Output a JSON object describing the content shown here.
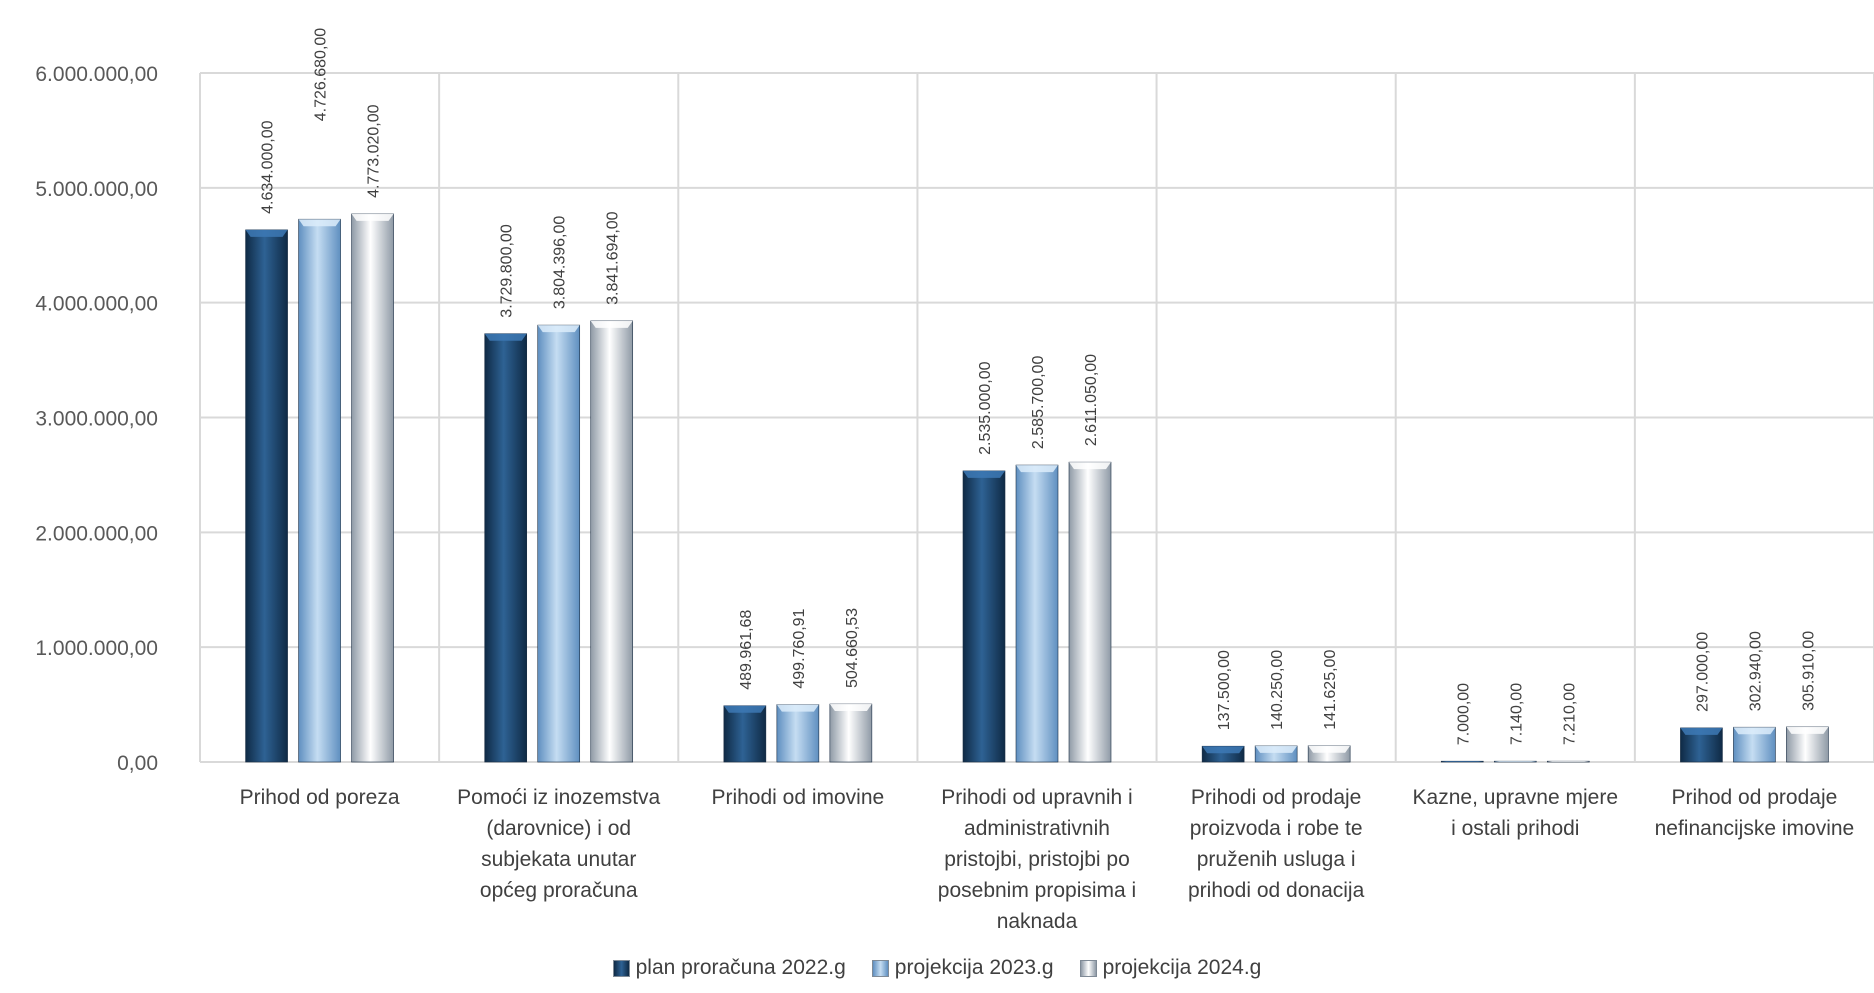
{
  "chart_data": {
    "type": "bar",
    "categories": [
      "Prihod od poreza",
      "Pomoći iz inozemstva (darovnice) i od subjekata unutar općeg proračuna",
      "Prihodi od imovine",
      "Prihodi od upravnih i administrativnih pristojbi, pristojbi po posebnim propisima i naknada",
      "Prihodi od prodaje proizvoda i robe te pruženih usluga i prihodi od donacija",
      "Kazne, upravne mjere i ostali prihodi",
      "Prihod od prodaje nefinancijske imovine"
    ],
    "category_lines": [
      [
        "Prihod od poreza"
      ],
      [
        "Pomoći iz inozemstva",
        "(darovnice) i od",
        "subjekata unutar",
        "općeg proračuna"
      ],
      [
        "Prihodi od imovine"
      ],
      [
        "Prihodi od upravnih i",
        "administrativnih",
        "pristojbi, pristojbi po",
        "posebnim propisima i",
        "naknada"
      ],
      [
        "Prihodi od prodaje",
        "proizvoda i robe te",
        "pruženih usluga i",
        "prihodi od donacija"
      ],
      [
        "Kazne, upravne mjere",
        "i ostali prihodi"
      ],
      [
        "Prihod od prodaje",
        "nefinancijske imovine"
      ]
    ],
    "series": [
      {
        "name": "plan proračuna 2022.g",
        "color": "#1f4e79",
        "values": [
          4634000.0,
          3729800.0,
          489961.68,
          2535000.0,
          137500.0,
          7000.0,
          297000.0
        ],
        "labels": [
          "4.634.000,00",
          "3.729.800,00",
          "489.961,68",
          "2.535.000,00",
          "137.500,00",
          "7.000,00",
          "297.000,00"
        ]
      },
      {
        "name": "projekcija 2023.g",
        "color": "#9dc3e6",
        "values": [
          4726680.0,
          3804396.0,
          499760.91,
          2585700.0,
          140250.0,
          7140.0,
          302940.0
        ],
        "labels": [
          "4.726.680,00",
          "3.804.396,00",
          "499.760,91",
          "2.585.700,00",
          "140.250,00",
          "7.140,00",
          "302.940,00"
        ]
      },
      {
        "name": "projekcija 2024.g",
        "color": "#e4ecf5",
        "values": [
          4773020.0,
          3841694.0,
          504660.53,
          2611050.0,
          141625.0,
          7210.0,
          305910.0
        ],
        "labels": [
          "4.773.020,00",
          "3.841.694,00",
          "504.660,53",
          "2.611.050,00",
          "141.625,00",
          "7.210,00",
          "305.910,00"
        ]
      }
    ],
    "ylim": [
      0,
      6000000
    ],
    "yticks": [
      0,
      1000000,
      2000000,
      3000000,
      4000000,
      5000000,
      6000000
    ],
    "ytick_labels": [
      "0,00",
      "1.000.000,00",
      "2.000.000,00",
      "3.000.000,00",
      "4.000.000,00",
      "5.000.000,00",
      "6.000.000,00"
    ],
    "title": "",
    "xlabel": "",
    "ylabel": "",
    "grid": true,
    "legend_position": "bottom",
    "gridline_color": "#d9d9d9"
  }
}
